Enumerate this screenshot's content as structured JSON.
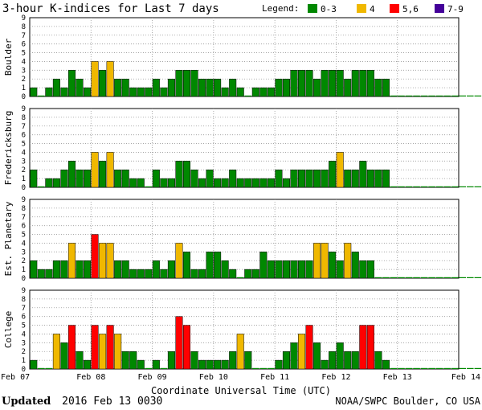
{
  "title": "3-hour K-indices for Last 7 days",
  "legend": {
    "label": "Legend:",
    "items": [
      {
        "name": "0-3",
        "color": "#008800"
      },
      {
        "name": "4",
        "color": "#f0b800"
      },
      {
        "name": "5,6",
        "color": "#ff0000"
      },
      {
        "name": "7-9",
        "color": "#440099"
      }
    ]
  },
  "chart_data": {
    "type": "bar",
    "title": "3-hour K-indices for Last 7 days",
    "xlabel": "Coordinate Universal Time (UTC)",
    "x_ticks": [
      "Feb 07",
      "Feb 08",
      "Feb 09",
      "Feb 10",
      "Feb 11",
      "Feb 12",
      "Feb 13",
      "Feb 14"
    ],
    "ylim": [
      0,
      9
    ],
    "y_ticks": [
      0,
      1,
      2,
      3,
      4,
      5,
      6,
      7,
      8,
      9
    ],
    "bins_per_day": 8,
    "panels": [
      {
        "name": "Boulder",
        "values": [
          1,
          0,
          1,
          2,
          1,
          3,
          2,
          1,
          4,
          3,
          4,
          2,
          2,
          1,
          1,
          1,
          2,
          1,
          2,
          3,
          3,
          3,
          2,
          2,
          2,
          1,
          2,
          1,
          0,
          1,
          1,
          1,
          2,
          2,
          3,
          3,
          3,
          2,
          3,
          3,
          3,
          2,
          3,
          3,
          3,
          2,
          2,
          0,
          0,
          0,
          0,
          0,
          0,
          0,
          0,
          0,
          0,
          0,
          0,
          0,
          0,
          0,
          0,
          0
        ]
      },
      {
        "name": "Fredericksburg",
        "values": [
          2,
          0,
          1,
          1,
          2,
          3,
          2,
          2,
          4,
          3,
          4,
          2,
          2,
          1,
          1,
          0,
          2,
          1,
          1,
          3,
          3,
          2,
          1,
          2,
          1,
          1,
          2,
          1,
          1,
          1,
          1,
          1,
          2,
          1,
          2,
          2,
          2,
          2,
          2,
          3,
          4,
          2,
          2,
          3,
          2,
          2,
          2,
          0,
          0,
          0,
          0,
          0,
          0,
          0,
          0,
          0,
          0,
          0,
          0,
          0,
          0,
          0,
          0,
          0
        ]
      },
      {
        "name": "Est. Planetary",
        "values": [
          2,
          1,
          1,
          2,
          2,
          4,
          2,
          2,
          5,
          4,
          4,
          2,
          2,
          1,
          1,
          1,
          2,
          1,
          2,
          4,
          3,
          1,
          1,
          3,
          3,
          2,
          1,
          0,
          1,
          1,
          3,
          2,
          2,
          2,
          2,
          2,
          2,
          4,
          4,
          3,
          2,
          4,
          3,
          2,
          2,
          0,
          0,
          0,
          0,
          0,
          0,
          0,
          0,
          0,
          0,
          0,
          0,
          0,
          0,
          0,
          0,
          0,
          0,
          0
        ]
      },
      {
        "name": "College",
        "values": [
          1,
          0,
          0,
          4,
          3,
          5,
          2,
          1,
          5,
          4,
          5,
          4,
          2,
          2,
          1,
          0,
          1,
          0,
          2,
          6,
          5,
          2,
          1,
          1,
          1,
          1,
          2,
          4,
          2,
          0,
          0,
          0,
          1,
          2,
          3,
          4,
          5,
          3,
          1,
          2,
          3,
          2,
          2,
          5,
          5,
          2,
          1,
          0,
          0,
          0,
          0,
          0,
          0,
          0,
          0,
          0,
          0,
          0,
          0,
          0,
          0,
          0,
          0,
          0
        ]
      }
    ]
  },
  "footer": {
    "updated_label": "Updated",
    "updated_value": "2016 Feb 13 0030",
    "source": "NOAA/SWPC Boulder, CO USA"
  }
}
